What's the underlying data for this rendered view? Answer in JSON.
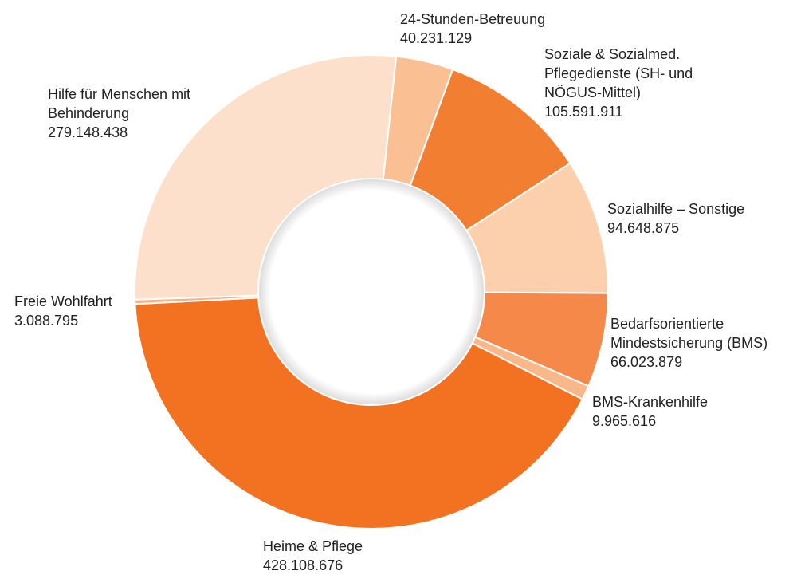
{
  "chart_data": {
    "type": "donut",
    "categories": [
      "24-Stunden-Betreuung",
      "Soziale & Sozialmed. Pflegedienste (SH- und NÖGUS-Mittel)",
      "Sozialhilfe – Sonstige",
      "Bedarfsorientierte Mindestsicherung (BMS)",
      "BMS-Krankenhilfe",
      "Heime & Pflege",
      "Freie Wohlfahrt",
      "Hilfe für Menschen mit Behinderung"
    ],
    "values": [
      40231129,
      105591911,
      94648875,
      66023879,
      9965616,
      428108676,
      3088795,
      279148438
    ],
    "value_labels": [
      "40.231.129",
      "105.591.911",
      "94.648.875",
      "66.023.879",
      "9.965.616",
      "428.108.676",
      "3.088.795",
      "279.148.438"
    ],
    "colors": [
      "#fbbf94",
      "#f27e32",
      "#fcd0ad",
      "#f5894a",
      "#f9b88a",
      "#f37221",
      "#f9b184",
      "#fde0cb"
    ]
  }
}
